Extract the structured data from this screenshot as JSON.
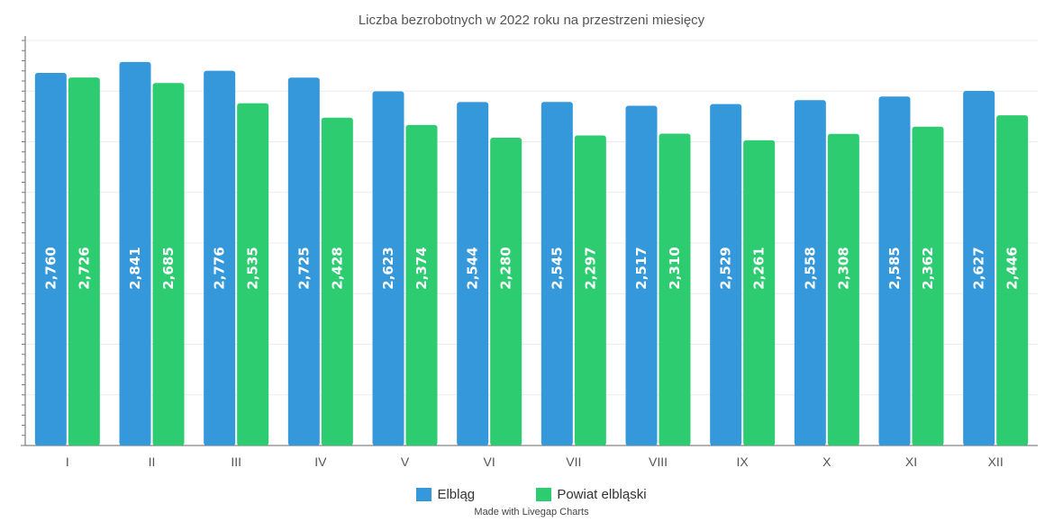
{
  "chart_data": {
    "type": "bar",
    "title": "Liczba bezrobotnych w 2022 roku na przestrzeni miesięcy",
    "categories": [
      "I",
      "II",
      "III",
      "IV",
      "V",
      "VI",
      "VII",
      "VIII",
      "IX",
      "X",
      "XI",
      "XII"
    ],
    "series": [
      {
        "name": "Elbląg",
        "color": "#3498db",
        "values": [
          2760,
          2841,
          2776,
          2725,
          2623,
          2544,
          2545,
          2517,
          2529,
          2558,
          2585,
          2627
        ],
        "labels": [
          "2,760",
          "2,841",
          "2,776",
          "2,725",
          "2,623",
          "2,544",
          "2,545",
          "2,517",
          "2,529",
          "2,558",
          "2,585",
          "2,627"
        ]
      },
      {
        "name": "Powiat elbląski",
        "color": "#2ecc71",
        "values": [
          2726,
          2685,
          2535,
          2428,
          2374,
          2280,
          2297,
          2310,
          2261,
          2308,
          2362,
          2446
        ],
        "labels": [
          "2,726",
          "2,685",
          "2,535",
          "2,428",
          "2,374",
          "2,280",
          "2,297",
          "2,310",
          "2,261",
          "2,308",
          "2,362",
          "2,446"
        ]
      }
    ],
    "ylim": [
      0,
      3000
    ],
    "y_tick_labels_shown": false,
    "grid": true,
    "legend_position": "bottom-center"
  },
  "credit": "Made with Livegap Charts"
}
